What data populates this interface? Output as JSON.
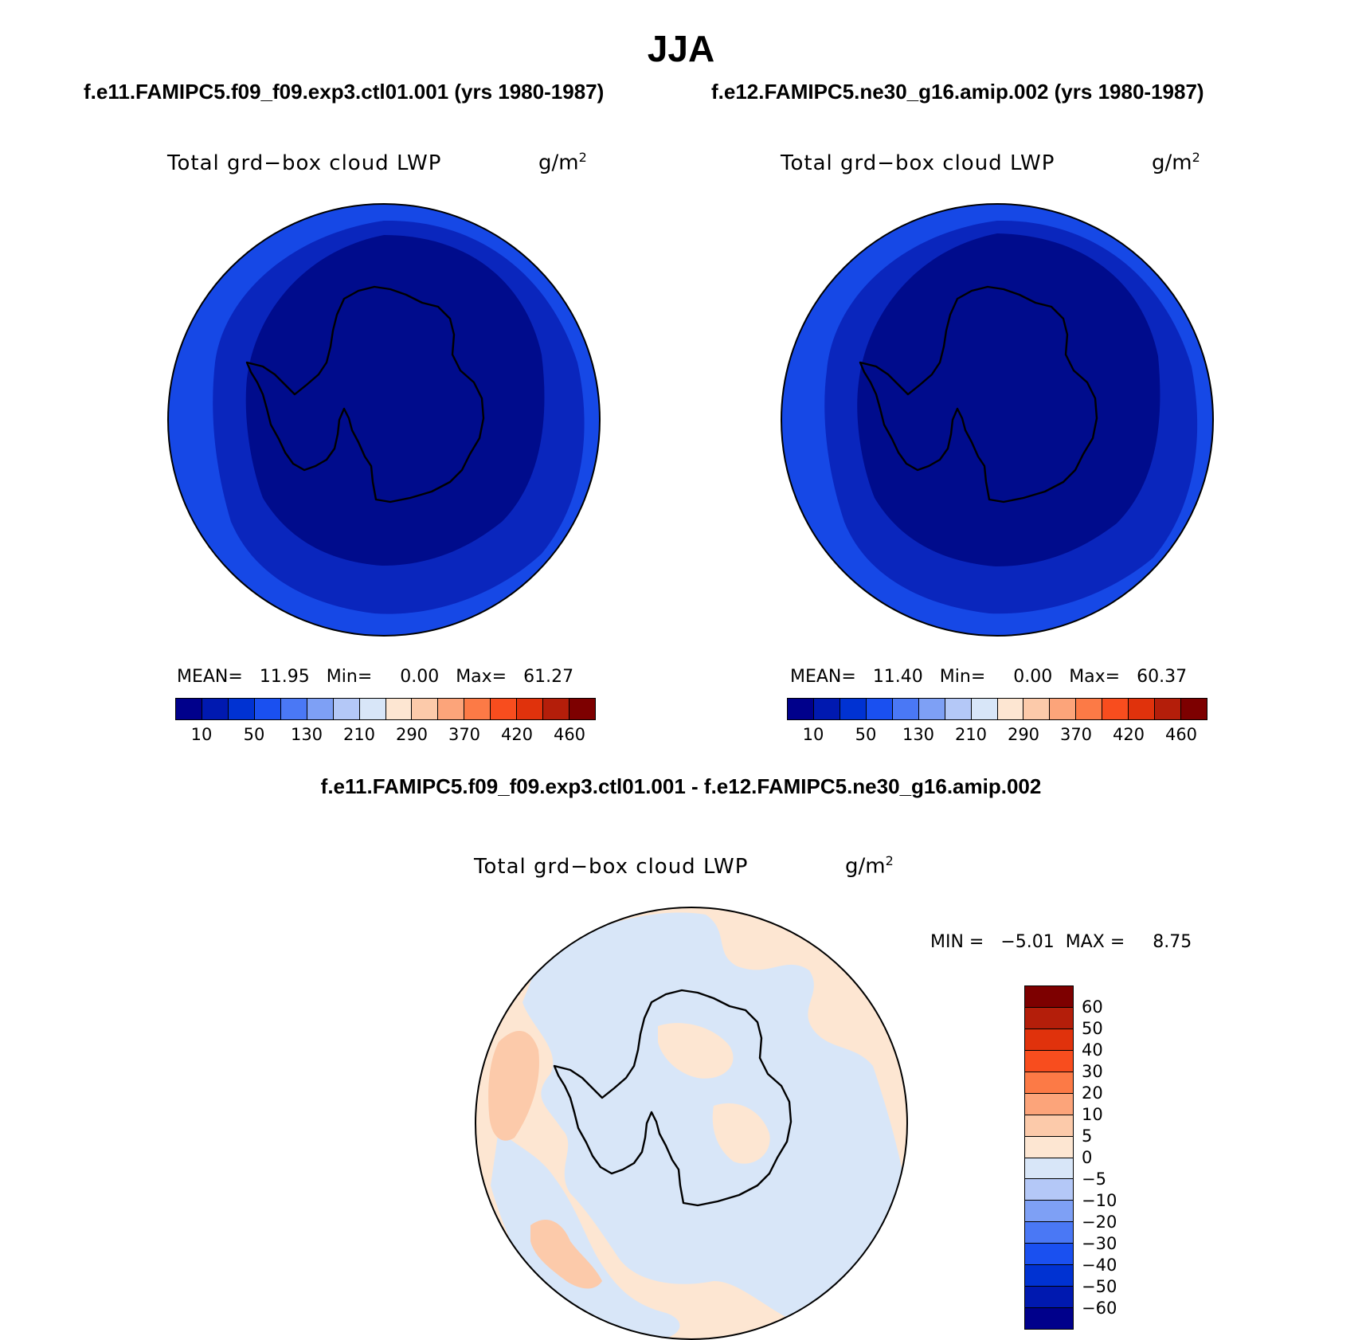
{
  "title": "JJA",
  "left_case_title": "f.e11.FAMIPC5.f09_f09.exp3.ctl01.001 (yrs 1980-1987)",
  "right_case_title": "f.e12.FAMIPC5.ne30_g16.amip.002 (yrs 1980-1987)",
  "diff_title": "f.e11.FAMIPC5.f09_f09.exp3.ctl01.001 - f.e12.FAMIPC5.ne30_g16.amip.002",
  "variable_label": "Total grd−box cloud LWP",
  "unit_base": "g/m",
  "unit_exp": "2",
  "panels": [
    {
      "mean_label": "MEAN=",
      "mean": "11.95",
      "min_label": "Min=",
      "min": "0.00",
      "max_label": "Max=",
      "max": "61.27"
    },
    {
      "mean_label": "MEAN=",
      "mean": "11.40",
      "min_label": "Min=",
      "min": "0.00",
      "max_label": "Max=",
      "max": "60.37"
    }
  ],
  "diff_stats": {
    "min_label": "MIN =",
    "min": "−5.01",
    "max_label": "MAX =",
    "max": "8.75"
  },
  "abs_colorbar": {
    "colors": [
      "#00008b",
      "#0019b0",
      "#0032d2",
      "#1a50f0",
      "#4a78f5",
      "#7ea0f5",
      "#b4c8f7",
      "#d8e6f8",
      "#fde6d2",
      "#fccaaa",
      "#fca47a",
      "#fc7a46",
      "#f84d1e",
      "#e0320c",
      "#b41e0a",
      "#7d0000"
    ],
    "labels": [
      "10",
      "50",
      "130",
      "210",
      "290",
      "370",
      "420",
      "460"
    ]
  },
  "diff_colorbar": {
    "colors": [
      "#7d0000",
      "#b41e0a",
      "#e0320c",
      "#f84d1e",
      "#fc7a46",
      "#fca47a",
      "#fccaaa",
      "#fde6d2",
      "#d8e6f8",
      "#b4c8f7",
      "#7ea0f5",
      "#4a78f5",
      "#1a50f0",
      "#0032d2",
      "#0019b0",
      "#00008b"
    ],
    "labels": [
      "60",
      "50",
      "40",
      "30",
      "20",
      "10",
      "5",
      "0",
      "−5",
      "−10",
      "−20",
      "−30",
      "−40",
      "−50",
      "−60"
    ]
  },
  "map_colors": {
    "abs_outer": "#1648e6",
    "abs_mid": "#0a26bd",
    "abs_inner": "#000c8c",
    "diff_pos": "#fde6d2",
    "diff_neg": "#d8e6f8",
    "diff_pos2": "#fccaaa"
  }
}
